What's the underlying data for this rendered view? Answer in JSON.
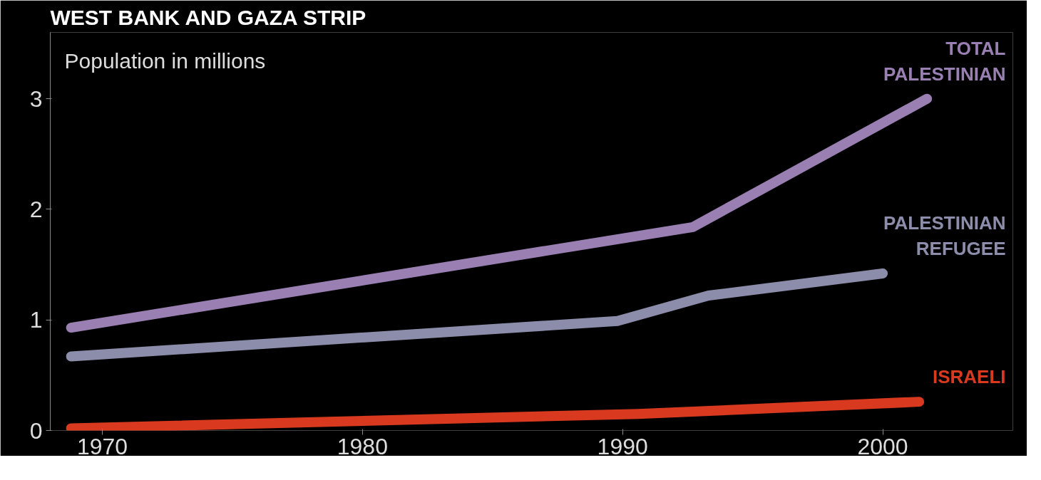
{
  "chart_data": {
    "type": "line",
    "title": "WEST BANK AND GAZA STRIP",
    "ylabel": "Population in millions",
    "xlim": [
      1968,
      2005
    ],
    "xticks": [
      1970,
      1980,
      1990,
      2000
    ],
    "ylim": [
      0,
      3.6
    ],
    "yticks": [
      0,
      1,
      2,
      3
    ],
    "grid": false,
    "legend": false,
    "marker": "none",
    "line_style": "solid",
    "series": [
      {
        "name": "TOTAL PALESTINIAN",
        "color": "#9a7fb3",
        "x": [
          1968.8,
          1992.7,
          2001.7
        ],
        "values": [
          0.93,
          1.84,
          3.0
        ]
      },
      {
        "name": "PALESTINIAN REFUGEE",
        "color": "#8c8cab",
        "x": [
          1968.8,
          1989.8,
          1993.3,
          2000
        ],
        "values": [
          0.67,
          0.99,
          1.22,
          1.42
        ]
      },
      {
        "name": "ISRAELI",
        "color": "#d93a1f",
        "x": [
          1968.8,
          1990.6,
          2001.4
        ],
        "values": [
          0.02,
          0.15,
          0.26
        ]
      }
    ]
  }
}
